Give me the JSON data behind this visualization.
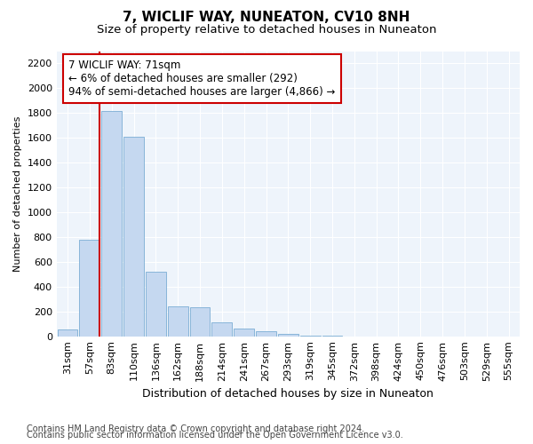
{
  "title": "7, WICLIF WAY, NUNEATON, CV10 8NH",
  "subtitle": "Size of property relative to detached houses in Nuneaton",
  "xlabel": "Distribution of detached houses by size in Nuneaton",
  "ylabel": "Number of detached properties",
  "bar_labels": [
    "31sqm",
    "57sqm",
    "83sqm",
    "110sqm",
    "136sqm",
    "162sqm",
    "188sqm",
    "214sqm",
    "241sqm",
    "267sqm",
    "293sqm",
    "319sqm",
    "345sqm",
    "372sqm",
    "398sqm",
    "424sqm",
    "450sqm",
    "476sqm",
    "503sqm",
    "529sqm",
    "555sqm"
  ],
  "bar_values": [
    55,
    780,
    1820,
    1610,
    520,
    240,
    235,
    110,
    60,
    40,
    20,
    5,
    2,
    1,
    0,
    0,
    0,
    0,
    0,
    0,
    0
  ],
  "bar_color": "#c5d8f0",
  "bar_edgecolor": "#7badd4",
  "vline_color": "#cc0000",
  "annotation_text": "7 WICLIF WAY: 71sqm\n← 6% of detached houses are smaller (292)\n94% of semi-detached houses are larger (4,866) →",
  "annotation_box_facecolor": "#ffffff",
  "annotation_box_edgecolor": "#cc0000",
  "ylim": [
    0,
    2300
  ],
  "yticks": [
    0,
    200,
    400,
    600,
    800,
    1000,
    1200,
    1400,
    1600,
    1800,
    2000,
    2200
  ],
  "footer_line1": "Contains HM Land Registry data © Crown copyright and database right 2024.",
  "footer_line2": "Contains public sector information licensed under the Open Government Licence v3.0.",
  "background_color": "#ffffff",
  "plot_background": "#eef4fb",
  "title_fontsize": 11,
  "subtitle_fontsize": 9.5,
  "annotation_fontsize": 8.5,
  "ylabel_fontsize": 8,
  "xlabel_fontsize": 9,
  "tick_fontsize": 8,
  "footer_fontsize": 7
}
